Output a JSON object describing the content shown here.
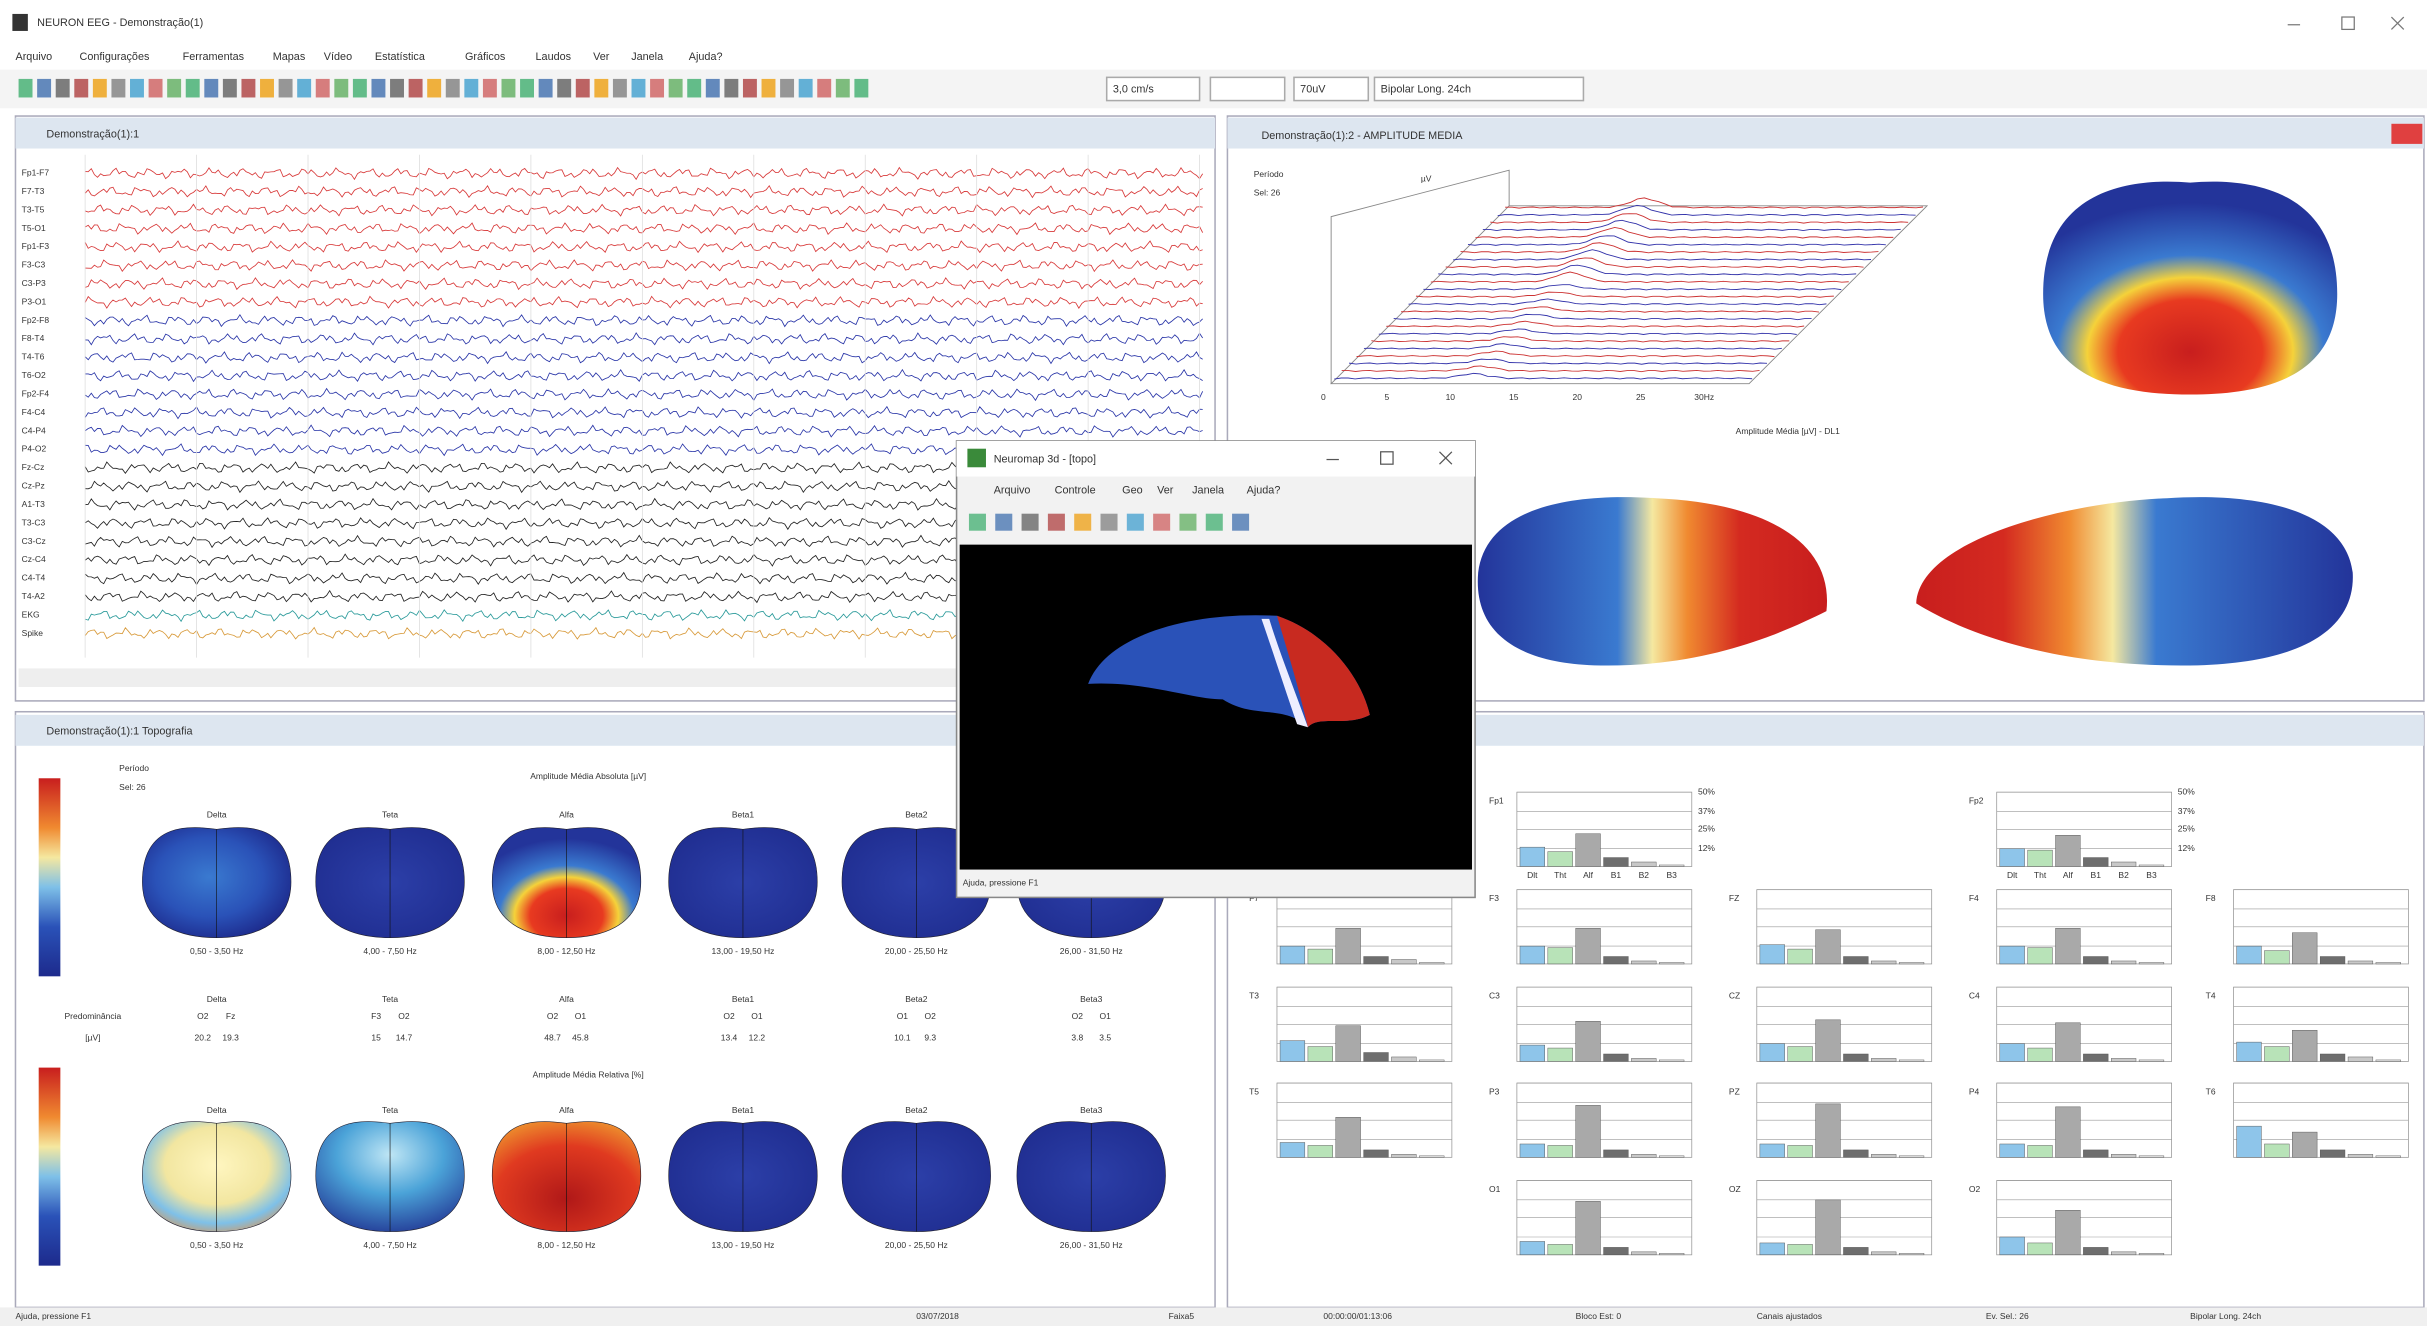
{
  "window": {
    "title": "NEURON EEG - Demonstração(1)"
  },
  "menu": [
    "Arquivo",
    "Configurações",
    "Ferramentas",
    "Mapas",
    "Vídeo",
    "Estatística",
    "Gráficos",
    "Laudos",
    "Ver",
    "Janela",
    "Ajuda?"
  ],
  "toolbar": {
    "speed": "3,0 cm/s",
    "gain": "70uV",
    "montage": "Bipolar Long. 24ch"
  },
  "eeg_panel": {
    "title": "Demonstração(1):1",
    "channels": [
      {
        "name": "Fp1-F7",
        "color": "#d83a3a"
      },
      {
        "name": "F7-T3",
        "color": "#d83a3a"
      },
      {
        "name": "T3-T5",
        "color": "#d83a3a"
      },
      {
        "name": "T5-O1",
        "color": "#d83a3a"
      },
      {
        "name": "Fp1-F3",
        "color": "#d83a3a"
      },
      {
        "name": "F3-C3",
        "color": "#d83a3a"
      },
      {
        "name": "C3-P3",
        "color": "#d83a3a"
      },
      {
        "name": "P3-O1",
        "color": "#d83a3a"
      },
      {
        "name": "Fp2-F8",
        "color": "#2a36a8"
      },
      {
        "name": "F8-T4",
        "color": "#2a36a8"
      },
      {
        "name": "T4-T6",
        "color": "#2a36a8"
      },
      {
        "name": "T6-O2",
        "color": "#2a36a8"
      },
      {
        "name": "Fp2-F4",
        "color": "#2a36a8"
      },
      {
        "name": "F4-C4",
        "color": "#2a36a8"
      },
      {
        "name": "C4-P4",
        "color": "#2a36a8"
      },
      {
        "name": "P4-O2",
        "color": "#2a36a8"
      },
      {
        "name": "Fz-Cz",
        "color": "#222222"
      },
      {
        "name": "Cz-Pz",
        "color": "#222222"
      },
      {
        "name": "A1-T3",
        "color": "#222222"
      },
      {
        "name": "T3-C3",
        "color": "#222222"
      },
      {
        "name": "C3-Cz",
        "color": "#222222"
      },
      {
        "name": "Cz-C4",
        "color": "#222222"
      },
      {
        "name": "C4-T4",
        "color": "#222222"
      },
      {
        "name": "T4-A2",
        "color": "#222222"
      },
      {
        "name": "EKG",
        "color": "#2a9a9a"
      },
      {
        "name": "Spike",
        "color": "#d89a3a"
      }
    ]
  },
  "amplitude_panel": {
    "title": "Demonstração(1):2 - AMPLITUDE MEDIA",
    "period": "Período",
    "sel": "Sel: 26",
    "unit": "µV",
    "x_ticks": [
      "0",
      "5",
      "10",
      "15",
      "20",
      "25",
      "30Hz"
    ],
    "x_label": "Amplitude Média [µV] - DL1"
  },
  "neuromap": {
    "title": "Neuromap 3d - [topo]",
    "menu": [
      "Arquivo",
      "Controle",
      "Geo",
      "Ver",
      "Janela",
      "Ajuda?"
    ],
    "status": "Ajuda, pressione F1"
  },
  "topo_panel": {
    "title": "Demonstração(1):1 Topografia",
    "period": "Período",
    "sel": "Sel: 26",
    "absolute_title": "Amplitude Média Absoluta [µV]",
    "relative_title": "Amplitude Média Relativa [%]",
    "predominance_label": "Predominância",
    "predominance_unit": "[µV]",
    "bands": [
      {
        "name": "Delta",
        "range": "0,50 - 3,50 Hz",
        "channels": [
          "O2",
          "Fz"
        ],
        "values": [
          20.2,
          19.3
        ]
      },
      {
        "name": "Teta",
        "range": "4,00 - 7,50 Hz",
        "channels": [
          "F3",
          "O2"
        ],
        "values": [
          15.0,
          14.7
        ]
      },
      {
        "name": "Alfa",
        "range": "8,00 - 12,50 Hz",
        "channels": [
          "O2",
          "O1"
        ],
        "values": [
          48.7,
          45.8
        ]
      },
      {
        "name": "Beta1",
        "range": "13,00 - 19,50 Hz",
        "channels": [
          "O2",
          "O1"
        ],
        "values": [
          13.4,
          12.2
        ]
      },
      {
        "name": "Beta2",
        "range": "20,00 - 25,50 Hz",
        "channels": [
          "O1",
          "O2"
        ],
        "values": [
          10.1,
          9.3
        ]
      },
      {
        "name": "Beta3",
        "range": "26,00 - 31,50 Hz",
        "channels": [
          "O2",
          "O1"
        ],
        "values": [
          3.8,
          3.5
        ]
      }
    ]
  },
  "bar_charts": {
    "yticks": [
      {
        "value": 50,
        "label": "50%"
      },
      {
        "value": 37,
        "label": "37%"
      },
      {
        "value": 25,
        "label": "25%"
      },
      {
        "value": 12,
        "label": "12%"
      }
    ],
    "bands": [
      "Dlt",
      "Tht",
      "Alf",
      "B1",
      "B2",
      "B3"
    ],
    "colors": [
      "#8ec5ea",
      "#b8e3b8",
      "#a9a9a9",
      "#6e6e6e",
      "#c8c8c8",
      "#e6e6e6"
    ],
    "channels": [
      {
        "name": "Fp1",
        "values": [
          13,
          10,
          22,
          6,
          3,
          1
        ]
      },
      {
        "name": "Fp2",
        "values": [
          12,
          11,
          21,
          6,
          3,
          1
        ]
      },
      {
        "name": "F7",
        "values": [
          12,
          10,
          24,
          5,
          3,
          1
        ]
      },
      {
        "name": "F3",
        "values": [
          12,
          11,
          24,
          5,
          2,
          1
        ]
      },
      {
        "name": "FZ",
        "values": [
          13,
          10,
          23,
          5,
          2,
          1
        ]
      },
      {
        "name": "F4",
        "values": [
          12,
          11,
          24,
          5,
          2,
          1
        ]
      },
      {
        "name": "F8",
        "values": [
          12,
          9,
          21,
          5,
          2,
          1
        ]
      },
      {
        "name": "T3",
        "values": [
          14,
          10,
          24,
          6,
          3,
          1
        ]
      },
      {
        "name": "C3",
        "values": [
          11,
          9,
          27,
          5,
          2,
          1
        ]
      },
      {
        "name": "CZ",
        "values": [
          12,
          10,
          28,
          5,
          2,
          1
        ]
      },
      {
        "name": "C4",
        "values": [
          12,
          9,
          26,
          5,
          2,
          1
        ]
      },
      {
        "name": "T4",
        "values": [
          13,
          10,
          21,
          5,
          3,
          1
        ]
      },
      {
        "name": "T5",
        "values": [
          10,
          8,
          27,
          5,
          2,
          1
        ]
      },
      {
        "name": "P3",
        "values": [
          9,
          8,
          35,
          5,
          2,
          1
        ]
      },
      {
        "name": "PZ",
        "values": [
          9,
          8,
          36,
          5,
          2,
          1
        ]
      },
      {
        "name": "P4",
        "values": [
          9,
          8,
          34,
          5,
          2,
          1
        ]
      },
      {
        "name": "T6",
        "values": [
          21,
          9,
          17,
          5,
          2,
          1
        ]
      },
      {
        "name": "O1",
        "values": [
          9,
          7,
          36,
          5,
          2,
          1
        ]
      },
      {
        "name": "OZ",
        "values": [
          8,
          7,
          37,
          5,
          2,
          1
        ]
      },
      {
        "name": "O2",
        "values": [
          12,
          8,
          30,
          5,
          2,
          1
        ]
      }
    ]
  },
  "status_bar": [
    "Ajuda, pressione F1",
    "03/07/2018",
    "Faixa5",
    "00:00:00/01:13:06",
    "Bloco Est: 0",
    "Canais ajustados",
    "Ev. Sel.: 26",
    "Bipolar Long. 24ch"
  ]
}
